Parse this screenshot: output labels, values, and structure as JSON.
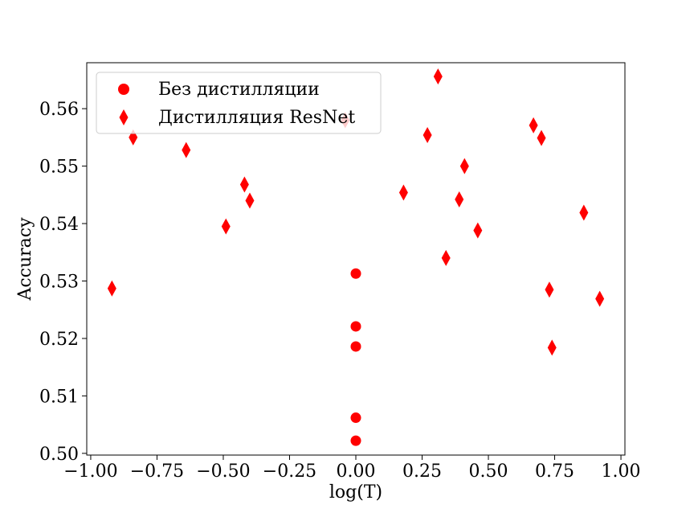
{
  "chart_data": {
    "type": "scatter",
    "xlabel": "log(T)",
    "ylabel": "Accuracy",
    "xlim": [
      -1.0,
      1.0
    ],
    "ylim": [
      0.5,
      0.568
    ],
    "xticks": [
      "−1.00",
      "−0.75",
      "−0.50",
      "−0.25",
      "0.00",
      "0.25",
      "0.50",
      "0.75",
      "1.00"
    ],
    "yticks": [
      "0.50",
      "0.51",
      "0.52",
      "0.53",
      "0.54",
      "0.55",
      "0.56"
    ],
    "grid": false,
    "legend_position": "top-left",
    "series": [
      {
        "name": "Без дистилляции",
        "marker": "circle",
        "color": "#ff0000",
        "points": [
          {
            "x": 0.0,
            "y": 0.5313
          },
          {
            "x": 0.0,
            "y": 0.5221
          },
          {
            "x": 0.0,
            "y": 0.5186
          },
          {
            "x": 0.0,
            "y": 0.5062
          },
          {
            "x": 0.0,
            "y": 0.5022
          }
        ]
      },
      {
        "name": "Дистилляция ResNet",
        "marker": "diamond",
        "color": "#ff0000",
        "points": [
          {
            "x": -0.92,
            "y": 0.5287
          },
          {
            "x": -0.84,
            "y": 0.555
          },
          {
            "x": -0.64,
            "y": 0.5528
          },
          {
            "x": -0.49,
            "y": 0.5395
          },
          {
            "x": -0.42,
            "y": 0.5468
          },
          {
            "x": -0.4,
            "y": 0.544
          },
          {
            "x": -0.04,
            "y": 0.558
          },
          {
            "x": 0.18,
            "y": 0.5454
          },
          {
            "x": 0.27,
            "y": 0.5554
          },
          {
            "x": 0.31,
            "y": 0.5656
          },
          {
            "x": 0.34,
            "y": 0.534
          },
          {
            "x": 0.39,
            "y": 0.5442
          },
          {
            "x": 0.41,
            "y": 0.55
          },
          {
            "x": 0.46,
            "y": 0.5388
          },
          {
            "x": 0.67,
            "y": 0.5571
          },
          {
            "x": 0.7,
            "y": 0.5549
          },
          {
            "x": 0.73,
            "y": 0.5285
          },
          {
            "x": 0.74,
            "y": 0.5184
          },
          {
            "x": 0.86,
            "y": 0.5419
          },
          {
            "x": 0.92,
            "y": 0.5269
          }
        ]
      }
    ]
  }
}
